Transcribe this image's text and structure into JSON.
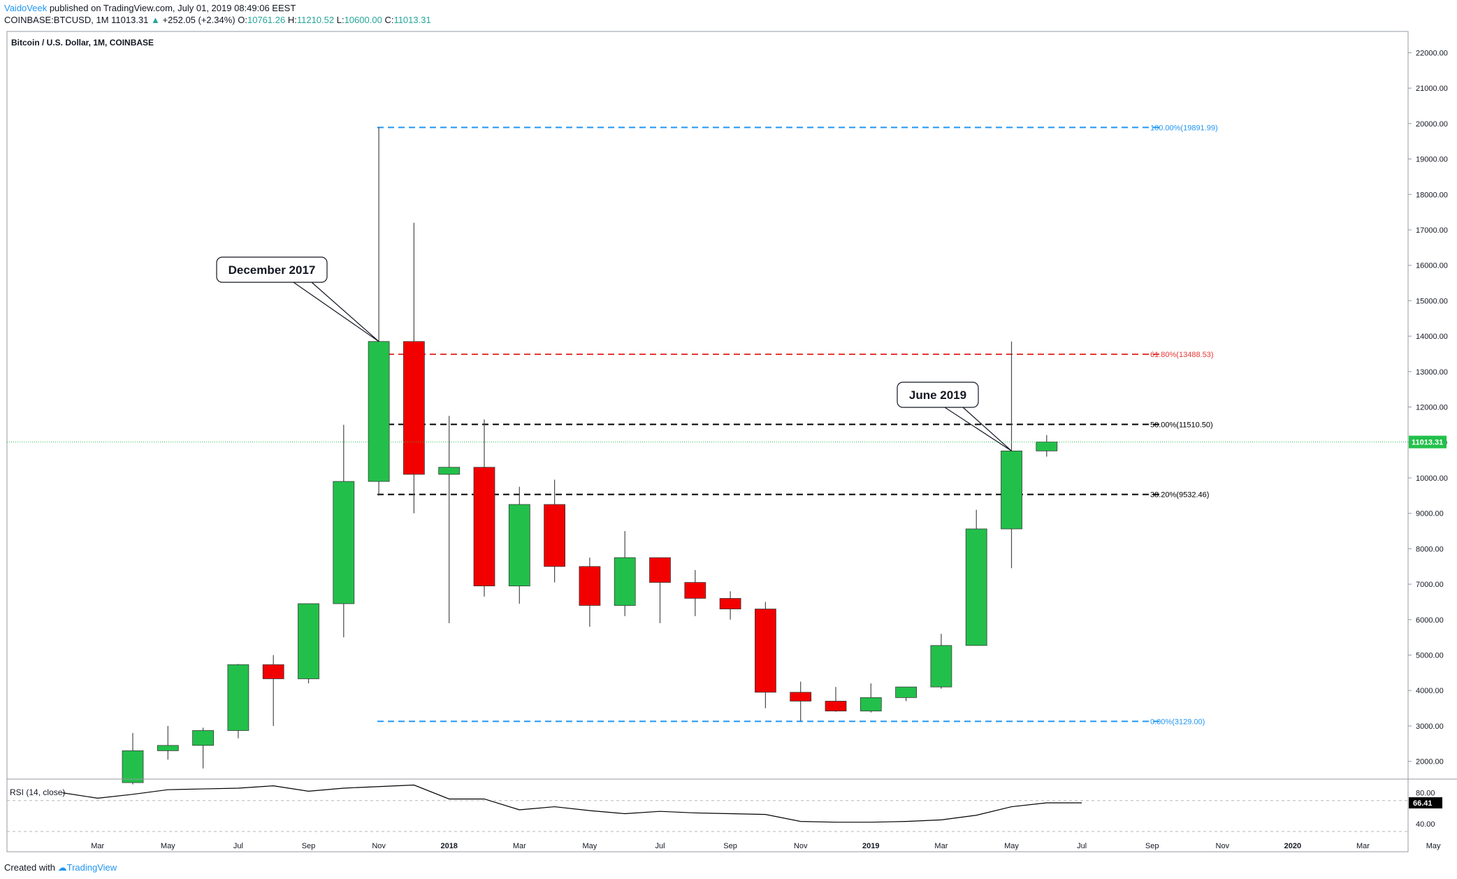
{
  "header": {
    "author": "VaidoVeek",
    "published": "published on TradingView.com, July 01, 2019 08:49:06 EEST",
    "symbol_line": "COINBASE:BTCUSD, 1M",
    "last": "11013.31",
    "change_arrow": "▲",
    "change": "+252.05 (+2.34%)",
    "o_label": "O:",
    "o": "10761.26",
    "h_label": "H:",
    "h": "11210.52",
    "l_label": "L:",
    "l": "10600.00",
    "c_label": "C:",
    "c": "11013.31"
  },
  "footer": {
    "created_with": "Created with",
    "brand": "TradingView"
  },
  "colors": {
    "up": "#22c04a",
    "down": "#f20000",
    "rsi_line": "#000000",
    "fib_blue": "#2196f3",
    "fib_red": "#e53935",
    "fib_black": "#000000",
    "last_price": "#22c04a"
  },
  "chart_data": {
    "type": "candlestick",
    "title": "Bitcoin / U.S. Dollar, 1M, COINBASE",
    "ylim": [
      1500,
      22600
    ],
    "y_ticks": [
      "22000.00",
      "21000.00",
      "20000.00",
      "19000.00",
      "18000.00",
      "17000.00",
      "16000.00",
      "15000.00",
      "14000.00",
      "13000.00",
      "12000.00",
      "11000.00",
      "10000.00",
      "9000.00",
      "8000.00",
      "7000.00",
      "6000.00",
      "5000.00",
      "4000.00",
      "3000.00",
      "2000.00"
    ],
    "x_ticks": [
      {
        "label": "Mar",
        "idx": -1
      },
      {
        "label": "May",
        "idx": 1
      },
      {
        "label": "Jul",
        "idx": 3
      },
      {
        "label": "Sep",
        "idx": 5
      },
      {
        "label": "Nov",
        "idx": 7
      },
      {
        "label": "2018",
        "idx": 9
      },
      {
        "label": "Mar",
        "idx": 11
      },
      {
        "label": "May",
        "idx": 13
      },
      {
        "label": "Jul",
        "idx": 15
      },
      {
        "label": "Sep",
        "idx": 17
      },
      {
        "label": "Nov",
        "idx": 19
      },
      {
        "label": "2019",
        "idx": 21
      },
      {
        "label": "Mar",
        "idx": 23
      },
      {
        "label": "May",
        "idx": 25
      },
      {
        "label": "Jul",
        "idx": 27
      },
      {
        "label": "Sep",
        "idx": 29
      },
      {
        "label": "Nov",
        "idx": 31
      },
      {
        "label": "2020",
        "idx": 33
      },
      {
        "label": "Mar",
        "idx": 35
      },
      {
        "label": "May",
        "idx": 37
      }
    ],
    "candles": [
      {
        "date": "2017-05",
        "o": 1400,
        "h": 2800,
        "l": 1350,
        "c": 2300
      },
      {
        "date": "2017-06",
        "o": 2300,
        "h": 3000,
        "l": 2050,
        "c": 2450
      },
      {
        "date": "2017-07",
        "o": 2450,
        "h": 2950,
        "l": 1800,
        "c": 2870
      },
      {
        "date": "2017-08",
        "o": 2870,
        "h": 4750,
        "l": 2650,
        "c": 4730
      },
      {
        "date": "2017-09",
        "o": 4730,
        "h": 5000,
        "l": 3000,
        "c": 4330
      },
      {
        "date": "2017-10",
        "o": 4330,
        "h": 6450,
        "l": 4200,
        "c": 6450
      },
      {
        "date": "2017-11",
        "o": 6450,
        "h": 11500,
        "l": 5500,
        "c": 9900
      },
      {
        "date": "2017-12",
        "o": 9900,
        "h": 19892,
        "l": 9500,
        "c": 13850
      },
      {
        "date": "2018-01",
        "o": 13850,
        "h": 17200,
        "l": 9000,
        "c": 10100
      },
      {
        "date": "2018-02",
        "o": 10100,
        "h": 11750,
        "l": 5900,
        "c": 10300
      },
      {
        "date": "2018-03",
        "o": 10300,
        "h": 11650,
        "l": 6650,
        "c": 6950
      },
      {
        "date": "2018-04",
        "o": 6950,
        "h": 9750,
        "l": 6450,
        "c": 9250
      },
      {
        "date": "2018-05",
        "o": 9250,
        "h": 9950,
        "l": 7050,
        "c": 7500
      },
      {
        "date": "2018-06",
        "o": 7500,
        "h": 7750,
        "l": 5800,
        "c": 6400
      },
      {
        "date": "2018-07",
        "o": 6400,
        "h": 8500,
        "l": 6100,
        "c": 7750
      },
      {
        "date": "2018-08",
        "o": 7750,
        "h": 7750,
        "l": 5900,
        "c": 7050
      },
      {
        "date": "2018-09",
        "o": 7050,
        "h": 7400,
        "l": 6100,
        "c": 6600
      },
      {
        "date": "2018-10",
        "o": 6600,
        "h": 6800,
        "l": 6000,
        "c": 6300
      },
      {
        "date": "2018-11",
        "o": 6300,
        "h": 6500,
        "l": 3500,
        "c": 3950
      },
      {
        "date": "2018-12",
        "o": 3950,
        "h": 4250,
        "l": 3129,
        "c": 3700
      },
      {
        "date": "2019-01",
        "o": 3700,
        "h": 4100,
        "l": 3400,
        "c": 3420
      },
      {
        "date": "2019-02",
        "o": 3420,
        "h": 4200,
        "l": 3380,
        "c": 3800
      },
      {
        "date": "2019-03",
        "o": 3800,
        "h": 4100,
        "l": 3700,
        "c": 4100
      },
      {
        "date": "2019-04",
        "o": 4100,
        "h": 5600,
        "l": 4050,
        "c": 5270
      },
      {
        "date": "2019-05",
        "o": 5270,
        "h": 9100,
        "l": 5270,
        "c": 8560
      },
      {
        "date": "2019-06",
        "o": 8560,
        "h": 13850,
        "l": 7450,
        "c": 10761
      },
      {
        "date": "2019-07",
        "o": 10761,
        "h": 11211,
        "l": 10600,
        "c": 11013
      }
    ],
    "last_price": {
      "value": 11013.31,
      "label": "11013.31"
    },
    "fib_levels": [
      {
        "label": "100.00%(19891.99)",
        "value": 19891.99,
        "color": "blue"
      },
      {
        "label": "61.80%(13488.53)",
        "value": 13488.53,
        "color": "red"
      },
      {
        "label": "50.00%(11510.50)",
        "value": 11510.5,
        "color": "black"
      },
      {
        "label": "38.20%(9532.46)",
        "value": 9532.46,
        "color": "black"
      },
      {
        "label": "0.00%(3129.00)",
        "value": 3129.0,
        "color": "blue"
      }
    ],
    "annotations": [
      {
        "text": "December 2017",
        "target_date": "2017-12",
        "target_value": 13850
      },
      {
        "text": "June 2019",
        "target_date": "2019-06",
        "target_value": 10761
      }
    ],
    "rsi": {
      "title": "RSI (14, close)",
      "ylim": [
        30,
        95
      ],
      "y_ticks": [
        "80.00",
        "40.00"
      ],
      "band_upper": 70,
      "band_lower": 30,
      "current_label": "66.41",
      "x_idx": [
        -2,
        -1,
        0,
        1,
        2,
        3,
        4,
        5,
        6,
        7,
        8,
        9,
        10,
        11,
        12,
        13,
        14,
        15,
        16,
        17,
        18,
        19,
        20,
        21,
        22,
        23,
        24,
        25,
        26,
        27
      ],
      "values": [
        80,
        73,
        78,
        84,
        85,
        86,
        89,
        82,
        86,
        88,
        90,
        72,
        72,
        58,
        62,
        57,
        53,
        56,
        54,
        53,
        52,
        43,
        42,
        42,
        43,
        45,
        51,
        62,
        67,
        67
      ]
    }
  }
}
